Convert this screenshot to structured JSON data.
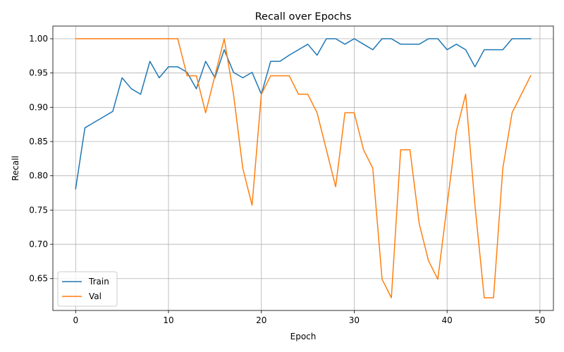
{
  "chart_data": {
    "type": "line",
    "title": "Recall over Epochs",
    "xlabel": "Epoch",
    "ylabel": "Recall",
    "xlim": [
      -2.45,
      51.45
    ],
    "ylim": [
      0.6035,
      1.0185
    ],
    "xticks": [
      0,
      10,
      20,
      30,
      40,
      50
    ],
    "yticks": [
      0.65,
      0.7,
      0.75,
      0.8,
      0.85,
      0.9,
      0.95,
      1.0
    ],
    "grid": true,
    "legend_position": "lower-left",
    "x": [
      0,
      1,
      2,
      3,
      4,
      5,
      6,
      7,
      8,
      9,
      10,
      11,
      12,
      13,
      14,
      15,
      16,
      17,
      18,
      19,
      20,
      21,
      22,
      23,
      24,
      25,
      26,
      27,
      28,
      29,
      30,
      31,
      32,
      33,
      34,
      35,
      36,
      37,
      38,
      39,
      40,
      41,
      42,
      43,
      44,
      45,
      46,
      47,
      48,
      49
    ],
    "series": [
      {
        "name": "Train",
        "color": "#1f77b4",
        "values": [
          0.781,
          0.87,
          0.878,
          0.886,
          0.894,
          0.943,
          0.927,
          0.919,
          0.967,
          0.943,
          0.959,
          0.959,
          0.951,
          0.927,
          0.967,
          0.943,
          0.984,
          0.951,
          0.943,
          0.951,
          0.919,
          0.967,
          0.967,
          0.976,
          0.984,
          0.992,
          0.976,
          1.0,
          1.0,
          0.992,
          1.0,
          0.992,
          0.984,
          1.0,
          1.0,
          0.992,
          0.992,
          0.992,
          1.0,
          1.0,
          0.984,
          0.992,
          0.984,
          0.959,
          0.984,
          0.984,
          0.984,
          1.0,
          1.0,
          1.0
        ]
      },
      {
        "name": "Val",
        "color": "#ff7f0e",
        "values": [
          1.0,
          1.0,
          1.0,
          1.0,
          1.0,
          1.0,
          1.0,
          1.0,
          1.0,
          1.0,
          1.0,
          1.0,
          0.946,
          0.946,
          0.892,
          0.946,
          1.0,
          0.919,
          0.811,
          0.757,
          0.919,
          0.946,
          0.946,
          0.946,
          0.919,
          0.919,
          0.892,
          0.838,
          0.784,
          0.892,
          0.892,
          0.838,
          0.811,
          0.649,
          0.622,
          0.838,
          0.838,
          0.73,
          0.676,
          0.649,
          0.757,
          0.865,
          0.919,
          0.757,
          0.622,
          0.622,
          0.811,
          0.892,
          0.919,
          0.946
        ]
      }
    ]
  }
}
